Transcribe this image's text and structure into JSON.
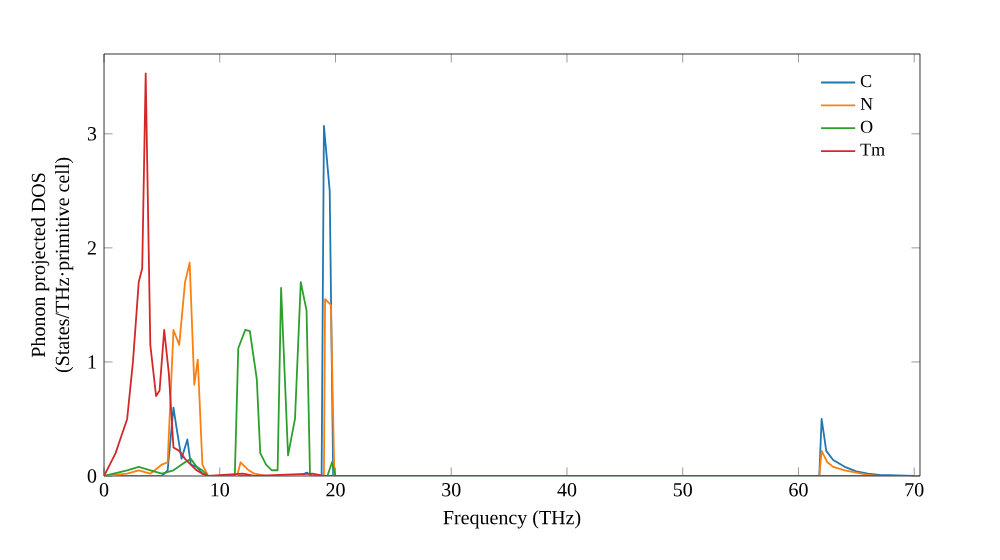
{
  "chart_data": {
    "type": "line",
    "xlabel": "Frequency (THz)",
    "ylabel": "Phonon projected DOS\n(States/THz·primitive cell)",
    "xlim": [
      0,
      70.5
    ],
    "ylim": [
      0,
      3.7
    ],
    "xticks": [
      0,
      10,
      20,
      30,
      40,
      50,
      60,
      70
    ],
    "yticks": [
      0,
      1,
      2,
      3
    ],
    "legend": "top right",
    "grid": false,
    "series": [
      {
        "name": "C",
        "color": "#1f77b4",
        "x": [
          0,
          5,
          5.5,
          6,
          6.3,
          6.7,
          7.2,
          7.5,
          8,
          8.5,
          9,
          17,
          17.5,
          18,
          18.8,
          19,
          19.5,
          19.8,
          61.8,
          62,
          62.4,
          63,
          64,
          65,
          66,
          67,
          70
        ],
        "values": [
          0,
          0,
          0.05,
          0.6,
          0.4,
          0.15,
          0.32,
          0.1,
          0.08,
          0.02,
          0,
          0,
          0.03,
          0,
          0,
          3.07,
          2.5,
          0,
          0,
          0.5,
          0.22,
          0.14,
          0.08,
          0.04,
          0.02,
          0.01,
          0
        ]
      },
      {
        "name": "N",
        "color": "#ff7f0e",
        "x": [
          0,
          2,
          3,
          4,
          5,
          5.5,
          6,
          6.5,
          7,
          7.4,
          7.8,
          8.1,
          8.5,
          9,
          11.5,
          11.8,
          12.5,
          13,
          14,
          19,
          19.1,
          19.6,
          19.9,
          61.8,
          62,
          62.5,
          63,
          64,
          65,
          66,
          67,
          70
        ],
        "values": [
          0,
          0.02,
          0.05,
          0.02,
          0.1,
          0.12,
          1.28,
          1.15,
          1.7,
          1.87,
          0.8,
          1.02,
          0.1,
          0,
          0,
          0.12,
          0.05,
          0.02,
          0,
          0,
          1.55,
          1.5,
          0,
          0,
          0.22,
          0.12,
          0.08,
          0.05,
          0.03,
          0.01,
          0,
          0
        ]
      },
      {
        "name": "O",
        "color": "#2ca02c",
        "x": [
          0,
          2,
          3,
          4,
          5,
          6,
          7,
          7.5,
          8,
          8.5,
          9,
          11.3,
          11.6,
          12.2,
          12.6,
          13.2,
          13.5,
          14,
          14.5,
          15,
          15.3,
          15.9,
          16.5,
          17,
          17.5,
          17.8,
          19.3,
          19.7,
          20,
          70
        ],
        "values": [
          0,
          0.05,
          0.08,
          0.05,
          0.02,
          0.05,
          0.12,
          0.15,
          0.08,
          0.05,
          0,
          0,
          1.12,
          1.28,
          1.27,
          0.85,
          0.2,
          0.1,
          0.05,
          0.05,
          1.65,
          0.18,
          0.5,
          1.7,
          1.45,
          0,
          0,
          0.12,
          0,
          0
        ]
      },
      {
        "name": "Tm",
        "color": "#d62728",
        "x": [
          0,
          0.5,
          1,
          1.5,
          2,
          2.5,
          3,
          3.3,
          3.6,
          4,
          4.5,
          4.8,
          5.2,
          5.6,
          6,
          6.5,
          7,
          7.5,
          8,
          8.5,
          9,
          12,
          13,
          18,
          19,
          70
        ],
        "values": [
          0,
          0.1,
          0.2,
          0.35,
          0.5,
          1.0,
          1.7,
          1.82,
          3.53,
          1.15,
          0.7,
          0.75,
          1.28,
          0.9,
          0.25,
          0.22,
          0.15,
          0.1,
          0.05,
          0.02,
          0,
          0.02,
          0,
          0.02,
          0,
          0
        ]
      }
    ]
  }
}
